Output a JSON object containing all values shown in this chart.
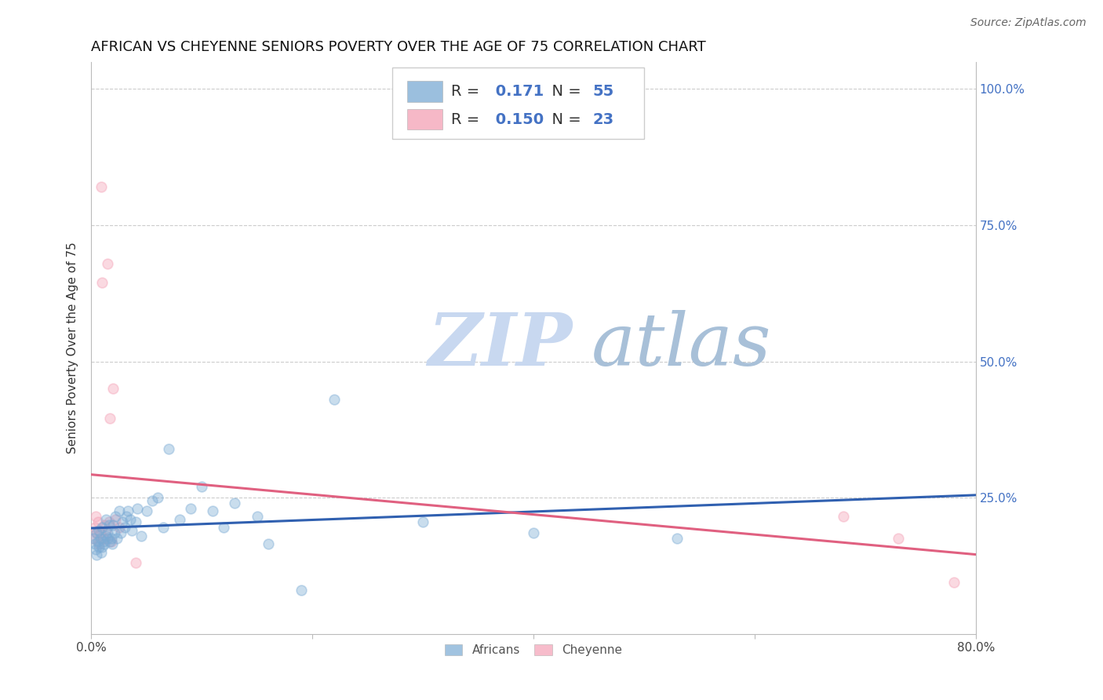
{
  "title": "AFRICAN VS CHEYENNE SENIORS POVERTY OVER THE AGE OF 75 CORRELATION CHART",
  "source": "Source: ZipAtlas.com",
  "ylabel": "Seniors Poverty Over the Age of 75",
  "xlim": [
    0.0,
    0.8
  ],
  "ylim": [
    0.0,
    1.05
  ],
  "ytick_labels_right": [
    "100.0%",
    "75.0%",
    "50.0%",
    "25.0%"
  ],
  "ytick_vals_right": [
    1.0,
    0.75,
    0.5,
    0.25
  ],
  "grid_yticks": [
    0.25,
    0.5,
    0.75,
    1.0
  ],
  "africans_color": "#7aaad4",
  "cheyenne_color": "#f4a0b5",
  "africans_line_color": "#3060b0",
  "cheyenne_line_color": "#e06080",
  "watermark_zip_color": "#c8d8f0",
  "watermark_atlas_color": "#b8cce0",
  "r_african": 0.171,
  "n_african": 55,
  "r_cheyenne": 0.15,
  "n_cheyenne": 23,
  "africans_x": [
    0.002,
    0.003,
    0.004,
    0.005,
    0.005,
    0.006,
    0.007,
    0.007,
    0.008,
    0.009,
    0.01,
    0.01,
    0.011,
    0.012,
    0.013,
    0.013,
    0.015,
    0.015,
    0.016,
    0.017,
    0.018,
    0.019,
    0.02,
    0.021,
    0.022,
    0.023,
    0.025,
    0.027,
    0.028,
    0.03,
    0.032,
    0.033,
    0.035,
    0.037,
    0.04,
    0.042,
    0.045,
    0.05,
    0.055,
    0.06,
    0.065,
    0.07,
    0.08,
    0.09,
    0.1,
    0.11,
    0.12,
    0.13,
    0.15,
    0.16,
    0.19,
    0.22,
    0.3,
    0.4,
    0.53
  ],
  "africans_y": [
    0.175,
    0.165,
    0.155,
    0.145,
    0.185,
    0.17,
    0.16,
    0.19,
    0.175,
    0.15,
    0.16,
    0.195,
    0.17,
    0.165,
    0.18,
    0.21,
    0.175,
    0.185,
    0.2,
    0.17,
    0.175,
    0.165,
    0.2,
    0.185,
    0.215,
    0.175,
    0.225,
    0.185,
    0.205,
    0.195,
    0.215,
    0.225,
    0.21,
    0.19,
    0.205,
    0.23,
    0.18,
    0.225,
    0.245,
    0.25,
    0.195,
    0.34,
    0.21,
    0.23,
    0.27,
    0.225,
    0.195,
    0.24,
    0.215,
    0.165,
    0.08,
    0.43,
    0.205,
    0.185,
    0.175
  ],
  "cheyenne_x": [
    0.002,
    0.003,
    0.004,
    0.005,
    0.006,
    0.007,
    0.008,
    0.009,
    0.01,
    0.011,
    0.012,
    0.013,
    0.015,
    0.016,
    0.017,
    0.018,
    0.02,
    0.022,
    0.025,
    0.04,
    0.68,
    0.73,
    0.78
  ],
  "cheyenne_y": [
    0.175,
    0.195,
    0.215,
    0.185,
    0.205,
    0.165,
    0.185,
    0.82,
    0.645,
    0.175,
    0.2,
    0.19,
    0.68,
    0.205,
    0.395,
    0.17,
    0.45,
    0.21,
    0.195,
    0.13,
    0.215,
    0.175,
    0.095
  ],
  "background_color": "#ffffff",
  "marker_size": 85,
  "marker_alpha": 0.4,
  "title_fontsize": 13,
  "label_fontsize": 11,
  "tick_fontsize": 11,
  "source_fontsize": 10,
  "legend_fontsize": 14
}
